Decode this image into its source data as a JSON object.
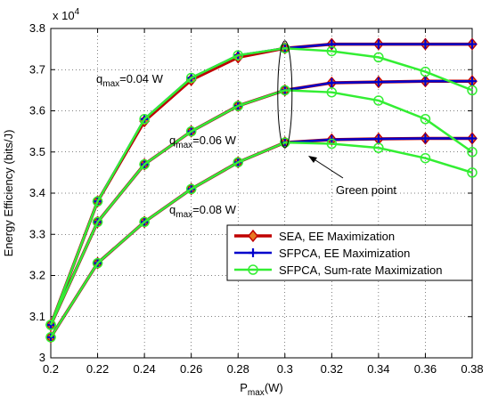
{
  "chart_data": {
    "type": "line",
    "title": "",
    "xlabel_main": "P",
    "xlabel_sub": "max",
    "xlabel_unit": "(W)",
    "ylabel": "Energy  Efficiency (bits/J)",
    "y_multiplier_base": "x 10",
    "y_multiplier_exp": "4",
    "xlim": [
      0.2,
      0.38
    ],
    "ylim": [
      30000,
      38000
    ],
    "x_ticks": [
      0.2,
      0.22,
      0.24,
      0.26,
      0.28,
      0.3,
      0.32,
      0.34,
      0.36,
      0.38
    ],
    "x_tick_labels": [
      "0.2",
      "0.22",
      "0.24",
      "0.26",
      "0.28",
      "0.3",
      "0.32",
      "0.34",
      "0.36",
      "0.38"
    ],
    "y_ticks": [
      30000,
      31000,
      32000,
      33000,
      34000,
      35000,
      36000,
      37000,
      38000
    ],
    "y_tick_labels": [
      "3",
      "3.1",
      "3.2",
      "3.3",
      "3.4",
      "3.5",
      "3.6",
      "3.7",
      "3.8"
    ],
    "grid": true,
    "legend_position": "lower-right",
    "x": [
      0.2,
      0.22,
      0.24,
      0.26,
      0.28,
      0.3,
      0.32,
      0.34,
      0.36,
      0.38
    ],
    "groups": [
      {
        "label_main": "q",
        "label_sub": "max",
        "label_value": "=0.04 W",
        "series": [
          {
            "name": "SEA, EE Maximization",
            "values": [
              30800,
              33800,
              35750,
              36750,
              37300,
              37520,
              37620,
              37620,
              37620,
              37620
            ]
          },
          {
            "name": "SFPCA, EE Maximization",
            "values": [
              30800,
              33800,
              35800,
              36800,
              37350,
              37520,
              37620,
              37620,
              37620,
              37620
            ]
          },
          {
            "name": "SFPCA, Sum-rate Maximization",
            "values": [
              30800,
              33800,
              35800,
              36800,
              37350,
              37520,
              37450,
              37300,
              36950,
              36500
            ]
          }
        ]
      },
      {
        "label_main": "q",
        "label_sub": "max",
        "label_value": "=0.06 W",
        "series": [
          {
            "name": "SEA, EE Maximization",
            "values": [
              30800,
              33300,
              34700,
              35500,
              36120,
              36500,
              36680,
              36700,
              36720,
              36720
            ]
          },
          {
            "name": "SFPCA, EE Maximization",
            "values": [
              30800,
              33300,
              34700,
              35500,
              36120,
              36500,
              36680,
              36700,
              36720,
              36720
            ]
          },
          {
            "name": "SFPCA, Sum-rate Maximization",
            "values": [
              30800,
              33300,
              34700,
              35500,
              36120,
              36500,
              36450,
              36250,
              35800,
              35000
            ]
          }
        ]
      },
      {
        "label_main": "q",
        "label_sub": "max",
        "label_value": "=0.08 W",
        "series": [
          {
            "name": "SEA, EE Maximization",
            "values": [
              30500,
              32300,
              33300,
              34100,
              34750,
              35230,
              35300,
              35320,
              35330,
              35330
            ]
          },
          {
            "name": "SFPCA, EE Maximization",
            "values": [
              30500,
              32300,
              33300,
              34100,
              34750,
              35230,
              35300,
              35320,
              35330,
              35330
            ]
          },
          {
            "name": "SFPCA, Sum-rate Maximization",
            "values": [
              30500,
              32300,
              33300,
              34100,
              34750,
              35230,
              35200,
              35100,
              34850,
              34500
            ]
          }
        ]
      }
    ],
    "legend": [
      {
        "name": "SEA, EE Maximization",
        "color": "#c00000",
        "marker": "diamond",
        "marker_fill": "#e87722"
      },
      {
        "name": "SFPCA, EE Maximization",
        "color": "#0000cc",
        "marker": "plus",
        "marker_fill": "#0000cc"
      },
      {
        "name": "SFPCA, Sum-rate Maximization",
        "color": "#33ee33",
        "marker": "circle",
        "marker_fill": "none"
      }
    ],
    "annotation": {
      "text": "Green point",
      "x": 0.3,
      "y_range": [
        35100,
        37700
      ]
    }
  }
}
